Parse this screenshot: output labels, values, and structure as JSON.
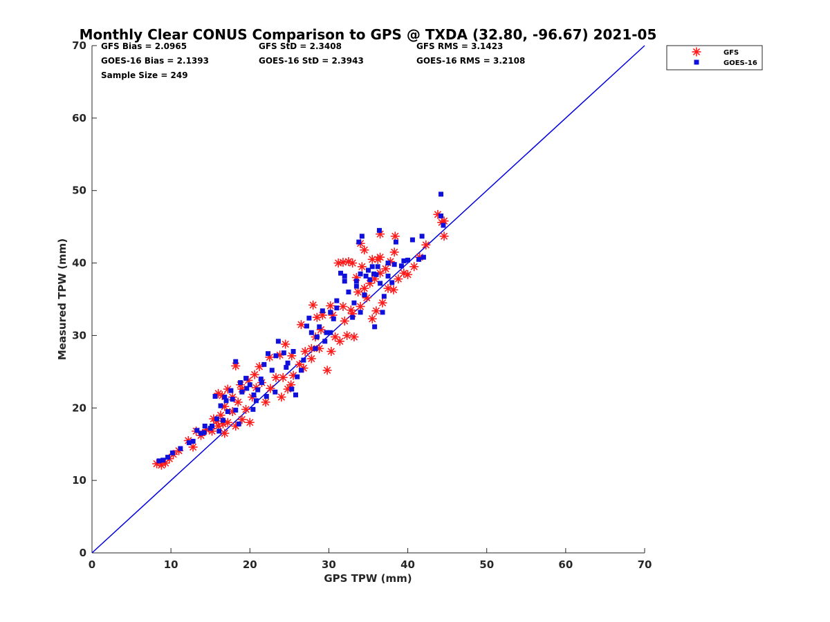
{
  "chart_data": {
    "type": "scatter",
    "title": "Monthly Clear CONUS Comparison to GPS @ TXDA (32.80, -96.67) 2021-05",
    "xlabel": "GPS TPW (mm)",
    "ylabel": "Measured TPW (mm)",
    "xlim": [
      0,
      70
    ],
    "ylim": [
      0,
      70
    ],
    "x_ticks": [
      "0",
      "10",
      "20",
      "30",
      "40",
      "50",
      "60",
      "70"
    ],
    "y_ticks": [
      "0",
      "10",
      "20",
      "30",
      "40",
      "50",
      "60",
      "70"
    ],
    "stats": {
      "gfs_bias": "GFS Bias = 2.0965",
      "gfs_std": "GFS StD = 2.3408",
      "gfs_rms": "GFS RMS = 3.1423",
      "goes_bias": "GOES-16 Bias = 2.1393",
      "goes_std": "GOES-16 StD = 2.3943",
      "goes_rms": "GOES-16 RMS = 3.2108",
      "sample_size": "Sample Size = 249"
    },
    "legend_position": "outside-top-right",
    "grid": false,
    "reference_line": {
      "x": [
        0,
        70
      ],
      "y": [
        0,
        70
      ],
      "color": "#0000dd"
    },
    "series": [
      {
        "name": "GFS",
        "marker": "asterisk",
        "color": "#ff1a1a",
        "points": [
          [
            8.2,
            12.3
          ],
          [
            8.8,
            12.1
          ],
          [
            9.3,
            12.4
          ],
          [
            9.8,
            13
          ],
          [
            10.3,
            13.6
          ],
          [
            11,
            14.1
          ],
          [
            12.2,
            15.5
          ],
          [
            12.8,
            14.6
          ],
          [
            13.2,
            16.8
          ],
          [
            13.8,
            16.2
          ],
          [
            14.5,
            17
          ],
          [
            15.2,
            16.8
          ],
          [
            15.8,
            18.2
          ],
          [
            16.3,
            19
          ],
          [
            16.8,
            16.5
          ],
          [
            17.2,
            18
          ],
          [
            17.8,
            19.5
          ],
          [
            18.2,
            17.5
          ],
          [
            18.5,
            20.8
          ],
          [
            19,
            18.4
          ],
          [
            19.5,
            19.8
          ],
          [
            20,
            18
          ],
          [
            20.3,
            21.5
          ],
          [
            20.8,
            22.8
          ],
          [
            21.5,
            23.5
          ],
          [
            22,
            20.8
          ],
          [
            22.6,
            22.7
          ],
          [
            23.3,
            24.2
          ],
          [
            24,
            21.5
          ],
          [
            24.8,
            22.6
          ],
          [
            25.5,
            24.5
          ],
          [
            26.3,
            26
          ],
          [
            27,
            27.8
          ],
          [
            27.8,
            26.8
          ],
          [
            28.3,
            29.8
          ],
          [
            28.8,
            28.2
          ],
          [
            29.8,
            25.2
          ],
          [
            30.3,
            27.8
          ],
          [
            30.8,
            29.8
          ],
          [
            31.4,
            29.2
          ],
          [
            32.3,
            30
          ],
          [
            33.2,
            29.8
          ],
          [
            32,
            32
          ],
          [
            33,
            33
          ],
          [
            34,
            34
          ],
          [
            34.8,
            35.2
          ],
          [
            35.5,
            32.3
          ],
          [
            36,
            33.4
          ],
          [
            36.8,
            34.5
          ],
          [
            37.5,
            36.5
          ],
          [
            38.2,
            36.3
          ],
          [
            38.8,
            37.8
          ],
          [
            39.5,
            38.6
          ],
          [
            40,
            38.4
          ],
          [
            40.8,
            39.5
          ],
          [
            41.5,
            40.8
          ],
          [
            42.3,
            42.5
          ],
          [
            43.8,
            46.7
          ],
          [
            44.3,
            45.6
          ],
          [
            44.6,
            43.7
          ],
          [
            44.6,
            45.8
          ],
          [
            38.4,
            43.7
          ],
          [
            38.3,
            41.5
          ],
          [
            36.5,
            44
          ],
          [
            36.5,
            40.8
          ],
          [
            35.5,
            40.5
          ],
          [
            34.5,
            41.8
          ],
          [
            34,
            42.7
          ],
          [
            33,
            40
          ],
          [
            32.5,
            40.2
          ],
          [
            31.8,
            40.1
          ],
          [
            31.2,
            40
          ],
          [
            28,
            34.2
          ],
          [
            30.2,
            34.1
          ],
          [
            31.8,
            34
          ],
          [
            26.5,
            31.5
          ],
          [
            28.5,
            32.5
          ],
          [
            29.2,
            32.8
          ],
          [
            22.5,
            27
          ],
          [
            23.8,
            27.3
          ],
          [
            24.5,
            28.8
          ],
          [
            25.3,
            27.2
          ],
          [
            18.2,
            25.8
          ],
          [
            19,
            22.6
          ],
          [
            17.2,
            22.6
          ],
          [
            16.5,
            21.7
          ],
          [
            16,
            22
          ],
          [
            16.8,
            20.2
          ],
          [
            17.8,
            21.5
          ],
          [
            18.8,
            23.2
          ],
          [
            19.8,
            23.8
          ],
          [
            20.6,
            24.6
          ],
          [
            21.2,
            25.7
          ],
          [
            15.4,
            18.5
          ],
          [
            16,
            17.5
          ],
          [
            16.6,
            17.8
          ],
          [
            33.7,
            36
          ],
          [
            34.5,
            36.5
          ],
          [
            35.2,
            37.2
          ],
          [
            35.8,
            37.8
          ],
          [
            36.5,
            38.6
          ],
          [
            37.2,
            39.2
          ],
          [
            32.8,
            33.5
          ],
          [
            30.5,
            32.8
          ],
          [
            24.2,
            24.2
          ],
          [
            25.2,
            23.2
          ],
          [
            26.8,
            25.5
          ],
          [
            27.8,
            28.2
          ],
          [
            29,
            30.8
          ],
          [
            33.5,
            38
          ],
          [
            34.2,
            39.5
          ],
          [
            36.2,
            40.5
          ],
          [
            37.8,
            40.2
          ]
        ]
      },
      {
        "name": "GOES-16",
        "marker": "square",
        "color": "#1010dd",
        "points": [
          [
            8.5,
            12.7
          ],
          [
            9,
            12.8
          ],
          [
            9.6,
            13.2
          ],
          [
            10.2,
            13.8
          ],
          [
            11.2,
            14.4
          ],
          [
            12.3,
            15.2
          ],
          [
            12.8,
            15.4
          ],
          [
            13.3,
            16.9
          ],
          [
            14.2,
            16.6
          ],
          [
            15.2,
            17.5
          ],
          [
            15.8,
            18.5
          ],
          [
            16.3,
            20.3
          ],
          [
            16.8,
            21.5
          ],
          [
            17.2,
            19.5
          ],
          [
            17.8,
            21.2
          ],
          [
            18.2,
            19.7
          ],
          [
            18.6,
            17.8
          ],
          [
            19,
            22.2
          ],
          [
            19.5,
            24.1
          ],
          [
            20,
            23.2
          ],
          [
            20.5,
            21.8
          ],
          [
            21,
            22.5
          ],
          [
            21.4,
            24
          ],
          [
            21.8,
            26
          ],
          [
            22.3,
            27.5
          ],
          [
            22.8,
            25.2
          ],
          [
            23.3,
            27.2
          ],
          [
            23.6,
            29.2
          ],
          [
            24.3,
            27.6
          ],
          [
            24.8,
            26.2
          ],
          [
            25.3,
            22.6
          ],
          [
            25.8,
            21.8
          ],
          [
            26.5,
            25.2
          ],
          [
            27.2,
            31.3
          ],
          [
            27.8,
            30.4
          ],
          [
            28.3,
            28.2
          ],
          [
            28.8,
            31.2
          ],
          [
            29.2,
            33.4
          ],
          [
            29.7,
            30.4
          ],
          [
            30.2,
            33.2
          ],
          [
            30.6,
            32.3
          ],
          [
            31,
            33.8
          ],
          [
            31.5,
            38.6
          ],
          [
            32,
            37.5
          ],
          [
            32.5,
            36
          ],
          [
            33,
            32.5
          ],
          [
            33.5,
            37.5
          ],
          [
            34,
            38.5
          ],
          [
            34.5,
            35.6
          ],
          [
            35,
            39
          ],
          [
            35.5,
            39.5
          ],
          [
            36,
            38.4
          ],
          [
            36.5,
            37.2
          ],
          [
            37,
            35.4
          ],
          [
            37.5,
            38.2
          ],
          [
            38,
            37.3
          ],
          [
            38.5,
            42.9
          ],
          [
            39.2,
            39.6
          ],
          [
            40,
            40.4
          ],
          [
            40.6,
            43.2
          ],
          [
            41.4,
            40.5
          ],
          [
            41.8,
            43.7
          ],
          [
            42,
            40.8
          ],
          [
            44.2,
            49.5
          ],
          [
            44.5,
            45.2
          ],
          [
            44.2,
            46.5
          ],
          [
            36.4,
            44.5
          ],
          [
            34.2,
            43.7
          ],
          [
            33.8,
            42.9
          ],
          [
            32,
            38.2
          ],
          [
            31,
            34.8
          ],
          [
            30.2,
            30.4
          ],
          [
            29.5,
            29.2
          ],
          [
            28.5,
            29.8
          ],
          [
            27.5,
            32.4
          ],
          [
            26.8,
            26.6
          ],
          [
            26,
            24.3
          ],
          [
            25.5,
            27.8
          ],
          [
            24.6,
            25.6
          ],
          [
            23.2,
            22.2
          ],
          [
            22.1,
            21.6
          ],
          [
            21.5,
            23.5
          ],
          [
            20.8,
            21
          ],
          [
            20.4,
            19.8
          ],
          [
            19.6,
            22.7
          ],
          [
            18.8,
            23.5
          ],
          [
            18.2,
            26.4
          ],
          [
            17.6,
            22.4
          ],
          [
            17,
            21
          ],
          [
            16.6,
            18.3
          ],
          [
            16.1,
            16.8
          ],
          [
            15.6,
            21.6
          ],
          [
            15,
            17.2
          ],
          [
            14.3,
            17.5
          ],
          [
            13.8,
            16.5
          ],
          [
            33.2,
            34.5
          ],
          [
            34,
            33.2
          ],
          [
            35.8,
            31.2
          ],
          [
            36.8,
            33.2
          ],
          [
            37.5,
            40
          ],
          [
            38.3,
            39.8
          ],
          [
            39.5,
            40.3
          ],
          [
            35.2,
            37.7
          ],
          [
            35.7,
            38.5
          ],
          [
            36.2,
            39.5
          ],
          [
            33.5,
            36.8
          ],
          [
            34.7,
            38.2
          ]
        ]
      }
    ]
  }
}
